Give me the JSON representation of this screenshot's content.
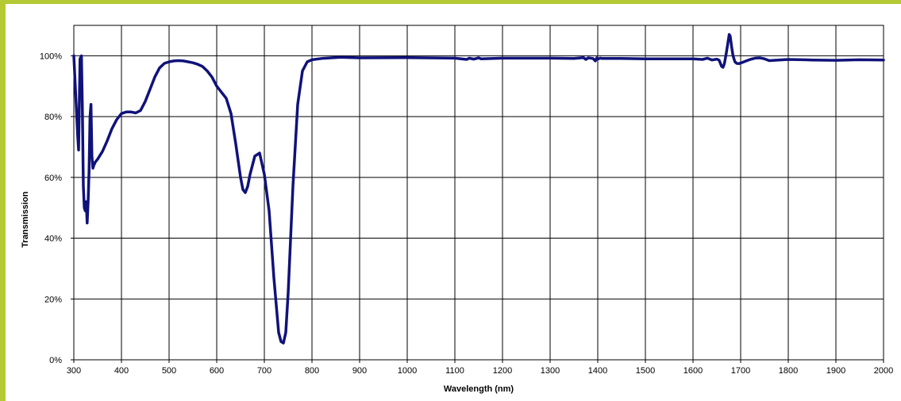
{
  "chart_data": {
    "type": "line",
    "title": "",
    "xlabel": "Wavelength (nm)",
    "ylabel": "Transmission",
    "xlim": [
      300,
      2000
    ],
    "ylim": [
      0,
      110
    ],
    "grid": true,
    "legend": "none",
    "x_ticks": [
      300,
      400,
      500,
      600,
      700,
      800,
      900,
      1000,
      1100,
      1200,
      1300,
      1400,
      1500,
      1600,
      1700,
      1800,
      1900,
      2000
    ],
    "x_tick_labels": [
      "300",
      "400",
      "500",
      "600",
      "700",
      "800",
      "900",
      "1000",
      "1100",
      "1200",
      "1300",
      "1400",
      "1500",
      "1600",
      "1700",
      "1800",
      "1900",
      "2000"
    ],
    "y_ticks": [
      0,
      20,
      40,
      60,
      80,
      100
    ],
    "y_tick_labels": [
      "0%",
      "20%",
      "40%",
      "60%",
      "80%",
      "100%"
    ],
    "series": [
      {
        "color": "#10127a",
        "x": [
          300,
          304,
          308,
          310,
          313,
          316,
          318,
          320,
          322,
          324,
          326,
          328,
          330,
          332,
          334,
          336,
          338,
          340,
          342,
          345,
          350,
          360,
          370,
          380,
          390,
          400,
          410,
          420,
          430,
          440,
          450,
          460,
          470,
          480,
          490,
          500,
          510,
          520,
          530,
          540,
          550,
          560,
          570,
          580,
          590,
          600,
          610,
          620,
          630,
          640,
          650,
          655,
          660,
          665,
          670,
          680,
          690,
          700,
          710,
          720,
          730,
          735,
          740,
          745,
          750,
          760,
          770,
          780,
          790,
          800,
          820,
          840,
          860,
          900,
          1000,
          1100,
          1125,
          1130,
          1140,
          1150,
          1155,
          1200,
          1300,
          1350,
          1370,
          1375,
          1380,
          1390,
          1395,
          1398,
          1400,
          1405,
          1410,
          1420,
          1450,
          1500,
          1550,
          1600,
          1620,
          1630,
          1640,
          1650,
          1655,
          1660,
          1663,
          1666,
          1670,
          1673,
          1676,
          1678,
          1681,
          1684,
          1688,
          1692,
          1696,
          1700,
          1710,
          1720,
          1730,
          1740,
          1750,
          1760,
          1780,
          1800,
          1850,
          1900,
          1950,
          2000
        ],
        "y": [
          100,
          87,
          74,
          69,
          99,
          100,
          82,
          57,
          50,
          49,
          52,
          45,
          52,
          62,
          80,
          84,
          67,
          63,
          64,
          65,
          66,
          68.5,
          72,
          76,
          79,
          81,
          81.5,
          81.5,
          81.2,
          82,
          85,
          89,
          93,
          96,
          97.5,
          98,
          98.3,
          98.4,
          98.3,
          98,
          97.7,
          97.2,
          96.5,
          95,
          93,
          90,
          88,
          86,
          81,
          71,
          60,
          56,
          55,
          57,
          61,
          67,
          68,
          61,
          49,
          27,
          9,
          6,
          5.5,
          9,
          22,
          57,
          84,
          95,
          98,
          98.7,
          99.1,
          99.3,
          99.5,
          99.3,
          99.4,
          99.2,
          98.8,
          99.2,
          98.9,
          99.3,
          99.0,
          99.2,
          99.2,
          99.1,
          99.4,
          98.8,
          99.3,
          99.1,
          98.3,
          99.3,
          98.9,
          99.2,
          99.1,
          99.1,
          99.1,
          99,
          99,
          99,
          98.8,
          99.2,
          98.6,
          98.9,
          98.5,
          96.5,
          96.2,
          97.5,
          101,
          104,
          107,
          106.5,
          103,
          100,
          98,
          97.5,
          97.4,
          97.6,
          98.2,
          98.8,
          99.2,
          99.3,
          99.0,
          98.4,
          98.6,
          98.8,
          98.6,
          98.5,
          98.7,
          98.6
        ]
      }
    ]
  }
}
